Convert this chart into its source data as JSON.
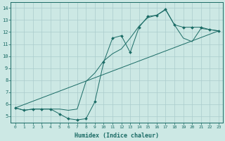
{
  "xlabel": "Humidex (Indice chaleur)",
  "xlim": [
    -0.5,
    23.5
  ],
  "ylim": [
    4.5,
    14.5
  ],
  "xticks": [
    0,
    1,
    2,
    3,
    4,
    5,
    6,
    7,
    8,
    9,
    10,
    11,
    12,
    13,
    14,
    15,
    16,
    17,
    18,
    19,
    20,
    21,
    22,
    23
  ],
  "yticks": [
    5,
    6,
    7,
    8,
    9,
    10,
    11,
    12,
    13,
    14
  ],
  "bg_color": "#cce8e4",
  "grid_color": "#aacccc",
  "line_color": "#1a6b65",
  "line1_x": [
    0,
    1,
    2,
    3,
    4,
    5,
    6,
    7,
    8,
    9,
    10,
    11,
    12,
    13,
    14,
    15,
    16,
    17,
    18,
    19,
    20,
    21,
    22,
    23
  ],
  "line1_y": [
    5.7,
    5.5,
    5.6,
    5.6,
    5.6,
    5.2,
    4.8,
    4.7,
    4.8,
    6.2,
    9.5,
    11.5,
    11.7,
    10.3,
    12.4,
    13.3,
    13.4,
    13.9,
    12.6,
    12.4,
    12.4,
    12.4,
    12.2,
    12.1
  ],
  "line2_x": [
    0,
    1,
    2,
    3,
    4,
    5,
    6,
    7,
    8,
    9,
    10,
    11,
    12,
    13,
    14,
    15,
    16,
    17,
    18,
    19,
    20,
    21,
    22,
    23
  ],
  "line2_y": [
    5.7,
    5.5,
    5.6,
    5.6,
    5.6,
    5.6,
    5.5,
    5.6,
    7.9,
    8.6,
    9.6,
    10.2,
    10.6,
    11.5,
    12.5,
    13.2,
    13.4,
    13.85,
    12.6,
    11.5,
    11.2,
    12.3,
    12.2,
    12.1
  ],
  "line3_x": [
    0,
    23
  ],
  "line3_y": [
    5.7,
    12.1
  ]
}
